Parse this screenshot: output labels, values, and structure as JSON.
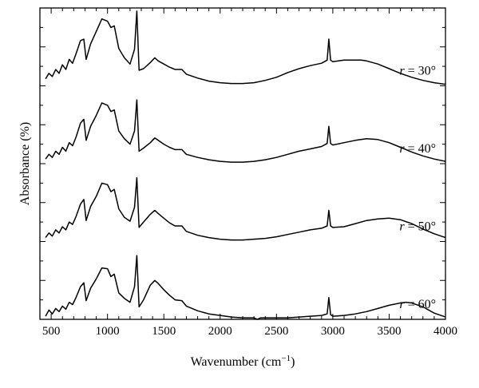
{
  "chart_data": {
    "type": "line",
    "title": "",
    "xlabel": "Wavenumber (cm",
    "xlabel_sup": "−1",
    "xlabel_close": ")",
    "ylabel": "Absorbance (%)",
    "xlim": [
      400,
      4000
    ],
    "ylim": [
      0,
      4
    ],
    "x_ticks": [
      500,
      1000,
      1500,
      2000,
      2500,
      3000,
      3500,
      4000
    ],
    "x_tick_labels": [
      "500",
      "1000",
      "1500",
      "2000",
      "2500",
      "3000",
      "3500",
      "4000"
    ],
    "grid": false,
    "legend": "none",
    "line_color": "#000000",
    "series": [
      {
        "name": "r = 30°",
        "label_var": "r",
        "label_rest": " = 30°",
        "offset": 3,
        "broad_band_center": 3250,
        "x": [
          450,
          480,
          510,
          540,
          570,
          600,
          630,
          660,
          690,
          720,
          760,
          790,
          810,
          850,
          900,
          950,
          1000,
          1030,
          1060,
          1100,
          1150,
          1200,
          1240,
          1260,
          1280,
          1320,
          1380,
          1420,
          1450,
          1500,
          1550,
          1600,
          1660,
          1700,
          1800,
          1900,
          2000,
          2100,
          2200,
          2300,
          2400,
          2500,
          2600,
          2700,
          2800,
          2900,
          2950,
          2965,
          2980,
          3000,
          3100,
          3200,
          3250,
          3300,
          3400,
          3500,
          3600,
          3700,
          3800,
          3900,
          4000
        ],
        "y": [
          0.09,
          0.16,
          0.12,
          0.21,
          0.16,
          0.27,
          0.21,
          0.34,
          0.29,
          0.41,
          0.58,
          0.6,
          0.34,
          0.54,
          0.7,
          0.86,
          0.83,
          0.75,
          0.77,
          0.48,
          0.36,
          0.28,
          0.47,
          0.96,
          0.2,
          0.22,
          0.3,
          0.36,
          0.32,
          0.28,
          0.24,
          0.21,
          0.21,
          0.15,
          0.1,
          0.06,
          0.04,
          0.03,
          0.03,
          0.04,
          0.07,
          0.11,
          0.17,
          0.22,
          0.26,
          0.29,
          0.33,
          0.6,
          0.33,
          0.31,
          0.33,
          0.33,
          0.33,
          0.32,
          0.28,
          0.22,
          0.16,
          0.11,
          0.07,
          0.04,
          0.02
        ]
      },
      {
        "name": "r = 40°",
        "label_var": "r",
        "label_rest": " = 40°",
        "offset": 2,
        "broad_band_center": 3400,
        "x": [
          450,
          480,
          510,
          540,
          570,
          600,
          630,
          660,
          690,
          720,
          760,
          790,
          810,
          850,
          900,
          950,
          1000,
          1030,
          1060,
          1100,
          1150,
          1200,
          1240,
          1260,
          1280,
          1320,
          1380,
          1420,
          1450,
          1500,
          1550,
          1600,
          1660,
          1700,
          1800,
          1900,
          2000,
          2100,
          2200,
          2300,
          2400,
          2500,
          2600,
          2700,
          2800,
          2900,
          2950,
          2965,
          2980,
          3000,
          3100,
          3200,
          3300,
          3400,
          3500,
          3600,
          3700,
          3800,
          3900,
          4000
        ],
        "y": [
          0.06,
          0.12,
          0.08,
          0.16,
          0.12,
          0.21,
          0.16,
          0.27,
          0.23,
          0.34,
          0.52,
          0.57,
          0.3,
          0.48,
          0.62,
          0.78,
          0.75,
          0.67,
          0.69,
          0.42,
          0.32,
          0.25,
          0.42,
          0.82,
          0.16,
          0.2,
          0.27,
          0.33,
          0.3,
          0.25,
          0.21,
          0.18,
          0.18,
          0.12,
          0.08,
          0.05,
          0.03,
          0.02,
          0.02,
          0.03,
          0.05,
          0.08,
          0.12,
          0.16,
          0.19,
          0.22,
          0.26,
          0.48,
          0.26,
          0.24,
          0.27,
          0.3,
          0.32,
          0.31,
          0.27,
          0.21,
          0.15,
          0.1,
          0.06,
          0.03
        ]
      },
      {
        "name": "r = 50°",
        "label_var": "r",
        "label_rest": " = 50°",
        "offset": 1,
        "broad_band_center": 3500,
        "x": [
          450,
          480,
          510,
          540,
          570,
          600,
          630,
          660,
          690,
          720,
          760,
          790,
          810,
          850,
          900,
          950,
          1000,
          1030,
          1060,
          1100,
          1150,
          1200,
          1240,
          1260,
          1280,
          1320,
          1380,
          1420,
          1450,
          1500,
          1550,
          1600,
          1660,
          1700,
          1800,
          1900,
          2000,
          2100,
          2200,
          2300,
          2400,
          2500,
          2600,
          2700,
          2800,
          2900,
          2950,
          2965,
          2980,
          3000,
          3100,
          3200,
          3300,
          3400,
          3500,
          3600,
          3700,
          3800,
          3900,
          4000
        ],
        "y": [
          0.05,
          0.11,
          0.07,
          0.15,
          0.11,
          0.19,
          0.15,
          0.25,
          0.22,
          0.32,
          0.48,
          0.54,
          0.27,
          0.45,
          0.58,
          0.75,
          0.73,
          0.64,
          0.67,
          0.42,
          0.31,
          0.26,
          0.44,
          0.82,
          0.18,
          0.25,
          0.35,
          0.4,
          0.36,
          0.3,
          0.24,
          0.2,
          0.2,
          0.13,
          0.08,
          0.05,
          0.03,
          0.02,
          0.02,
          0.03,
          0.04,
          0.06,
          0.09,
          0.12,
          0.15,
          0.17,
          0.2,
          0.4,
          0.2,
          0.18,
          0.19,
          0.23,
          0.27,
          0.29,
          0.3,
          0.28,
          0.23,
          0.16,
          0.1,
          0.05
        ]
      },
      {
        "name": "r = 60°",
        "label_var": "r",
        "label_rest": " = 60°",
        "offset": 0,
        "broad_band_center": 3650,
        "x": [
          450,
          480,
          510,
          540,
          570,
          600,
          630,
          660,
          690,
          720,
          760,
          790,
          810,
          850,
          900,
          950,
          1000,
          1030,
          1060,
          1100,
          1150,
          1200,
          1240,
          1260,
          1280,
          1320,
          1380,
          1420,
          1450,
          1500,
          1550,
          1600,
          1660,
          1700,
          1800,
          1900,
          2000,
          2100,
          2200,
          2300,
          2330,
          2360,
          2400,
          2500,
          2600,
          2700,
          2800,
          2900,
          2950,
          2965,
          2980,
          3000,
          3100,
          3200,
          3300,
          3400,
          3500,
          3600,
          3650,
          3700,
          3800,
          3900,
          4000
        ],
        "y": [
          0.04,
          0.12,
          0.07,
          0.14,
          0.1,
          0.17,
          0.13,
          0.22,
          0.19,
          0.28,
          0.42,
          0.47,
          0.24,
          0.4,
          0.52,
          0.66,
          0.65,
          0.55,
          0.58,
          0.34,
          0.27,
          0.22,
          0.42,
          0.82,
          0.16,
          0.25,
          0.44,
          0.5,
          0.46,
          0.38,
          0.31,
          0.25,
          0.24,
          0.17,
          0.11,
          0.07,
          0.05,
          0.03,
          0.02,
          0.02,
          0.0,
          0.02,
          0.02,
          0.02,
          0.02,
          0.03,
          0.04,
          0.05,
          0.07,
          0.28,
          0.06,
          0.04,
          0.05,
          0.07,
          0.1,
          0.14,
          0.18,
          0.21,
          0.22,
          0.21,
          0.16,
          0.08,
          0.03
        ]
      }
    ]
  }
}
